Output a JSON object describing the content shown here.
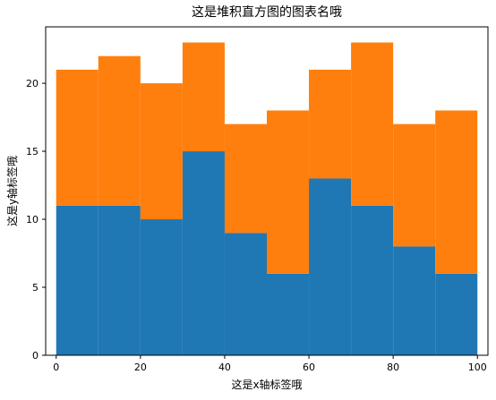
{
  "chart_data": {
    "type": "bar",
    "stacked": true,
    "histogram": true,
    "title": "这是堆积直方图的图表名哦",
    "xlabel": "这是x轴标签哦",
    "ylabel": "这是y轴标签哦",
    "xlim": [
      -2.5,
      102.5
    ],
    "ylim": [
      0,
      24.15
    ],
    "bin_edges": [
      0,
      10,
      20,
      30,
      40,
      50,
      60,
      70,
      80,
      90,
      100
    ],
    "xticks": [
      0,
      20,
      40,
      60,
      80,
      100
    ],
    "yticks": [
      0,
      5,
      10,
      15,
      20
    ],
    "grid": false,
    "legend": "none",
    "series": [
      {
        "values": [
          11,
          11,
          10,
          15,
          9,
          6,
          13,
          11,
          8,
          6
        ],
        "color": "#1f77b4"
      },
      {
        "values": [
          10,
          11,
          10,
          8,
          8,
          12,
          8,
          12,
          9,
          12
        ],
        "color": "#ff7f0e"
      }
    ]
  }
}
